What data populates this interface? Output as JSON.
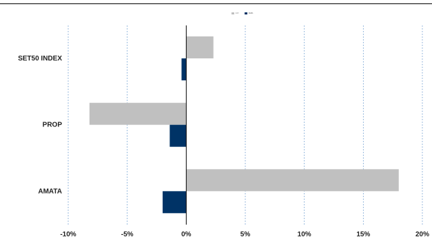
{
  "chart_data": {
    "type": "bar",
    "orientation": "horizontal",
    "categories": [
      "SET50 INDEX",
      "PROP",
      "AMATA"
    ],
    "series": [
      {
        "name": "1Yr",
        "values": [
          2.3,
          -8.2,
          18.0
        ],
        "color": "#c0c0c0"
      },
      {
        "name": "3Mth",
        "values": [
          -0.4,
          -1.4,
          -2.0
        ],
        "color": "#003366"
      }
    ],
    "xlim": [
      -10,
      20
    ],
    "xticks": [
      -10,
      -5,
      0,
      5,
      10,
      15,
      20
    ],
    "tick_labels": [
      "-10%",
      "-5%",
      "0%",
      "5%",
      "10%",
      "15%",
      "20%"
    ],
    "grid": "vertical dashed",
    "legend_position": "top-center"
  }
}
